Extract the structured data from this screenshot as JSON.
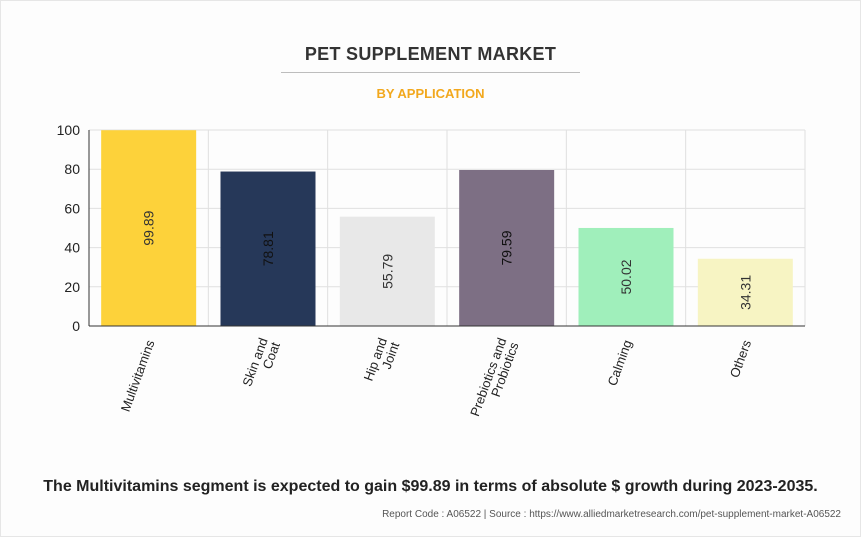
{
  "colors": {
    "subtitle": "#f2a81d",
    "grid": "#e0e0e0",
    "axis": "#333333"
  },
  "title": "PET SUPPLEMENT MARKET",
  "subtitle": "BY APPLICATION",
  "footer": {
    "statement": "The Multivitamins segment is expected to gain $99.89 in terms of absolute $ growth during 2023-2035.",
    "source": "Report Code : A06522  |  Source : https://www.alliedmarketresearch.com/pet-supplement-market-A06522"
  },
  "chart_data": {
    "type": "bar",
    "categories": [
      [
        "Multivitamins"
      ],
      [
        "Skin and",
        "Coat"
      ],
      [
        "Hip and",
        "Joint"
      ],
      [
        "Prebiotics and",
        "Probiotics"
      ],
      [
        "Calming"
      ],
      [
        "Others"
      ]
    ],
    "values": [
      99.89,
      78.81,
      55.79,
      79.59,
      50.02,
      34.31
    ],
    "value_labels": [
      "99.89",
      "78.81",
      "55.79",
      "79.59",
      "50.02",
      "34.31"
    ],
    "bar_colors": [
      "#fdd23a",
      "#263859",
      "#e8e8e8",
      "#7d6f84",
      "#a0efbb",
      "#f7f4c3"
    ],
    "label_colors": [
      "#333333",
      "#111111",
      "#333333",
      "#111111",
      "#333333",
      "#333333"
    ],
    "ylim": [
      0,
      100
    ],
    "yticks": [
      "0",
      "20",
      "40",
      "60",
      "80",
      "100"
    ],
    "grid": true
  }
}
